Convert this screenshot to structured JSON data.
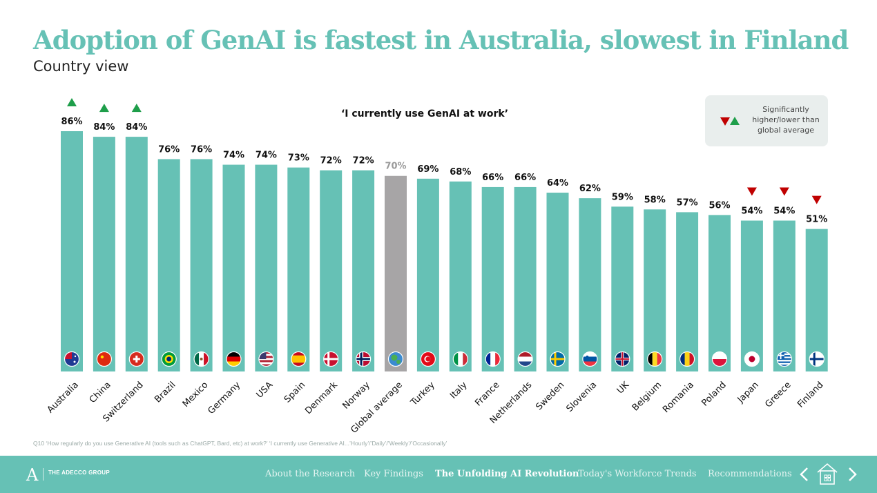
{
  "title": "Adoption of GenAI is fastest in Australia,  slowest in Finland",
  "subtitle": "Country view",
  "chart_heading": "‘I currently use GenAI at work’",
  "legend": {
    "text": "Significantly\nhigher/lower than\nglobal average"
  },
  "footnote": "Q10 ‘How regularly do you use Generative AI (tools such as ChatGPT, Bard, etc) at work?’ ‘I currently use Generative AI...’Hourly’/’Daily’/’Weekly’/’Occasionally’",
  "colors": {
    "bar": "#66c1b5",
    "highlight_bar": "#a7a5a6",
    "label_highlight": "#9a9a9a",
    "up": "#1e9e4a",
    "down": "#c00000",
    "nav_bg": "#66c1b5"
  },
  "chart_data": {
    "type": "bar",
    "title": "‘I currently use GenAI at work’",
    "categories": [
      "Australia",
      "China",
      "Switzerland",
      "Brazil",
      "Mexico",
      "Germany",
      "USA",
      "Spain",
      "Denmark",
      "Norway",
      "Global average",
      "Turkey",
      "Italy",
      "France",
      "Netherlands",
      "Sweden",
      "Slovenia",
      "UK",
      "Belgium",
      "Romania",
      "Poland",
      "Japan",
      "Greece",
      "Finland"
    ],
    "values": [
      86,
      84,
      84,
      76,
      76,
      74,
      74,
      73,
      72,
      72,
      70,
      69,
      68,
      66,
      66,
      64,
      62,
      59,
      58,
      57,
      56,
      54,
      54,
      51
    ],
    "labels": [
      "86%",
      "84%",
      "84%",
      "76%",
      "76%",
      "74%",
      "74%",
      "73%",
      "72%",
      "72%",
      "70%",
      "69%",
      "68%",
      "66%",
      "66%",
      "64%",
      "62%",
      "59%",
      "58%",
      "57%",
      "56%",
      "54%",
      "54%",
      "51%"
    ],
    "significance": [
      "up",
      "up",
      "up",
      "",
      "",
      "",
      "",
      "",
      "",
      "",
      "",
      "",
      "",
      "",
      "",
      "",
      "",
      "",
      "",
      "",
      "",
      "down",
      "down",
      "down"
    ],
    "highlight_category": "Global average",
    "flags": [
      "flag-australia-icon",
      "flag-china-icon",
      "flag-switzerland-icon",
      "flag-brazil-icon",
      "flag-mexico-icon",
      "flag-germany-icon",
      "flag-usa-icon",
      "flag-spain-icon",
      "flag-denmark-icon",
      "flag-norway-icon",
      "globe-icon",
      "flag-turkey-icon",
      "flag-italy-icon",
      "flag-france-icon",
      "flag-netherlands-icon",
      "flag-sweden-icon",
      "flag-slovenia-icon",
      "flag-uk-icon",
      "flag-belgium-icon",
      "flag-romania-icon",
      "flag-poland-icon",
      "flag-japan-icon",
      "flag-greece-icon",
      "flag-finland-icon"
    ],
    "ylim": [
      0,
      100
    ],
    "grid": false,
    "legend_position": "top-right"
  },
  "nav": {
    "logo_letter": "A",
    "logo_text": "THE ADECCO GROUP",
    "items": [
      {
        "label": "About the Research",
        "active": false
      },
      {
        "label": "Key Findings",
        "active": false
      },
      {
        "label": "The Unfolding AI Revolution",
        "active": true
      },
      {
        "label": "Today's Workforce Trends",
        "active": false
      },
      {
        "label": "Recommendations",
        "active": false
      }
    ]
  }
}
